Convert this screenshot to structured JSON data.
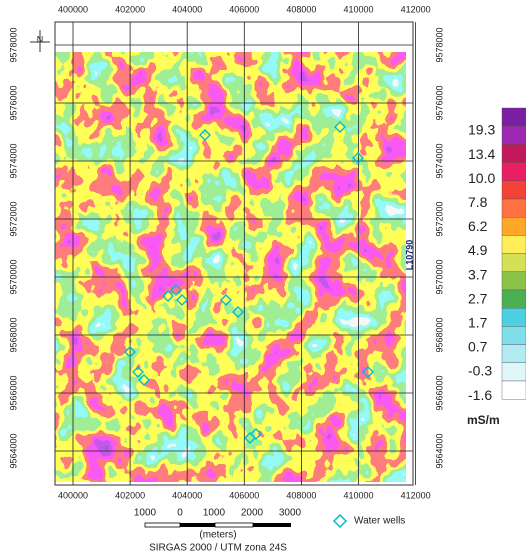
{
  "map": {
    "top_axis": [
      "400000",
      "402000",
      "404000",
      "406000",
      "408000",
      "410000",
      "412000"
    ],
    "bottom_axis": [
      "400000",
      "402000",
      "404000",
      "406000",
      "408000",
      "410000",
      "412000"
    ],
    "left_axis": [
      "9578000",
      "9576000",
      "9574000",
      "9572000",
      "9570000",
      "9568000",
      "9566000",
      "9564000"
    ],
    "right_axis": [
      "9578000",
      "9576000",
      "9574000",
      "9572000",
      "9570000",
      "9568000",
      "9566000",
      "9564000"
    ],
    "north": "N",
    "line_label": "L10790",
    "colorbar": {
      "labels": [
        "19.3",
        "13.4",
        "10.0",
        "7.8",
        "6.2",
        "4.9",
        "3.7",
        "2.7",
        "1.7",
        "0.7",
        "-0.3",
        "-1.6"
      ],
      "unit": "mS/m"
    },
    "scale_bar": {
      "labels": [
        "1000",
        "0",
        "1000",
        "2000",
        "3000"
      ],
      "unit": "(meters)"
    },
    "projection": "SIRGAS 2000 / UTM zona 24S",
    "legend": {
      "label": "Water wells"
    }
  }
}
